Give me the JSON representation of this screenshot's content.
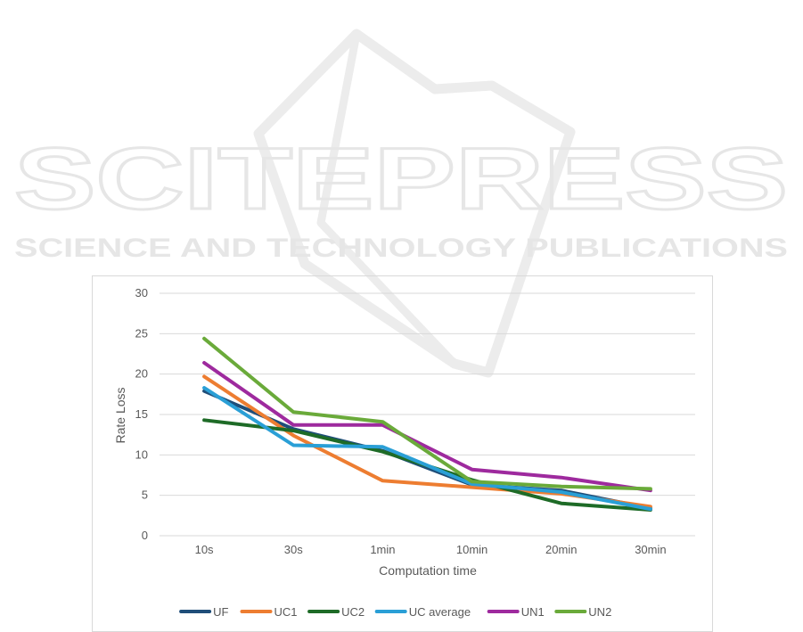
{
  "watermark": {
    "brand": "SCITEPRESS",
    "tagline": "SCIENCE AND TECHNOLOGY PUBLICATIONS"
  },
  "chart_data": {
    "type": "line",
    "categories": [
      "10s",
      "30s",
      "1min",
      "10min",
      "20min",
      "30min"
    ],
    "xlabel": "Computation time",
    "ylabel": "Rate Loss",
    "ylim": [
      0,
      30
    ],
    "yticks": [
      0,
      5,
      10,
      15,
      20,
      25,
      30
    ],
    "grid": true,
    "legend_position": "bottom",
    "series": [
      {
        "name": "UF",
        "color": "#1f4e79",
        "values": [
          17.9,
          13.2,
          10.5,
          6.3,
          5.6,
          3.4
        ]
      },
      {
        "name": "UC1",
        "color": "#ed7d31",
        "values": [
          19.7,
          12.4,
          6.8,
          6.0,
          5.2,
          3.6
        ]
      },
      {
        "name": "UC2",
        "color": "#1e6b27",
        "values": [
          14.3,
          13.0,
          10.4,
          6.9,
          4.0,
          3.2
        ]
      },
      {
        "name": "UC average",
        "color": "#2a9fd6",
        "values": [
          18.3,
          11.2,
          11.0,
          6.4,
          5.4,
          3.3
        ]
      },
      {
        "name": "UN1",
        "color": "#9e2a9e",
        "values": [
          21.4,
          13.7,
          13.7,
          8.2,
          7.2,
          5.6
        ]
      },
      {
        "name": "UN2",
        "color": "#6aaa3a",
        "values": [
          24.4,
          15.3,
          14.1,
          6.7,
          6.1,
          5.8
        ]
      }
    ]
  }
}
